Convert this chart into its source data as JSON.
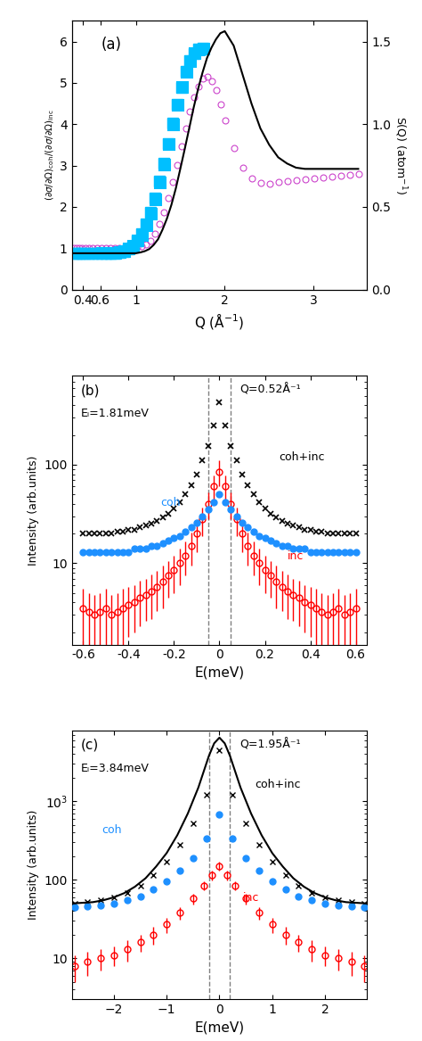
{
  "panel_a": {
    "title": "(a)",
    "xlabel": "Q (Å⁻¹)",
    "ylabel_left": "(∂σ/∂Ω)_coh/(∂σ/∂Ω)_inc",
    "ylabel_right": "S(Q) (atom⁻¹)",
    "xlim": [
      0.28,
      3.6
    ],
    "ylim_left": [
      0,
      6.5
    ],
    "ylim_right": [
      0,
      1.625
    ],
    "black_line_Q": [
      0.29,
      0.32,
      0.35,
      0.38,
      0.42,
      0.46,
      0.5,
      0.55,
      0.6,
      0.65,
      0.7,
      0.75,
      0.8,
      0.85,
      0.9,
      0.95,
      1.0,
      1.05,
      1.1,
      1.15,
      1.2,
      1.25,
      1.3,
      1.35,
      1.4,
      1.45,
      1.5,
      1.55,
      1.6,
      1.65,
      1.7,
      1.75,
      1.8,
      1.85,
      1.9,
      1.95,
      2.0,
      2.1,
      2.2,
      2.3,
      2.4,
      2.5,
      2.6,
      2.7,
      2.8,
      2.9,
      3.0,
      3.1,
      3.2,
      3.3,
      3.4,
      3.5
    ],
    "black_line_val": [
      0.88,
      0.88,
      0.88,
      0.88,
      0.88,
      0.88,
      0.88,
      0.88,
      0.88,
      0.88,
      0.88,
      0.88,
      0.88,
      0.88,
      0.88,
      0.88,
      0.88,
      0.9,
      0.93,
      0.98,
      1.08,
      1.22,
      1.45,
      1.72,
      2.05,
      2.45,
      2.92,
      3.4,
      3.9,
      4.4,
      4.85,
      5.25,
      5.6,
      5.85,
      6.05,
      6.2,
      6.25,
      5.9,
      5.2,
      4.5,
      3.9,
      3.5,
      3.2,
      3.05,
      2.95,
      2.92,
      2.92,
      2.92,
      2.92,
      2.92,
      2.92,
      2.92
    ],
    "cyan_open_sq_Q": [
      0.62,
      0.67,
      0.72,
      0.77,
      0.82,
      0.87,
      0.92,
      0.97,
      1.02,
      1.07,
      1.12,
      1.17,
      1.22,
      1.27,
      1.32,
      1.37,
      1.42,
      1.47,
      1.52,
      1.57,
      1.62,
      1.67,
      1.72,
      1.77
    ],
    "cyan_open_sq_val": [
      0.88,
      0.88,
      0.88,
      0.88,
      0.9,
      0.93,
      0.98,
      1.05,
      1.17,
      1.32,
      1.55,
      1.83,
      2.18,
      2.58,
      3.02,
      3.5,
      3.98,
      4.45,
      4.88,
      5.25,
      5.52,
      5.7,
      5.8,
      5.82
    ],
    "cyan_filled_sq_Q": [
      0.3,
      0.33,
      0.36,
      0.39,
      0.43,
      0.47,
      0.51,
      0.56,
      0.61,
      0.66,
      0.71,
      0.76,
      0.81,
      0.86,
      0.91,
      0.96,
      1.01,
      1.06,
      1.11,
      1.16,
      1.21,
      1.26,
      1.31,
      1.36,
      1.41,
      1.46,
      1.51,
      1.56,
      1.61,
      1.66,
      1.71,
      1.76
    ],
    "cyan_filled_sq_val": [
      0.88,
      0.88,
      0.88,
      0.88,
      0.88,
      0.88,
      0.88,
      0.88,
      0.88,
      0.88,
      0.88,
      0.88,
      0.9,
      0.93,
      0.98,
      1.05,
      1.17,
      1.35,
      1.58,
      1.87,
      2.22,
      2.62,
      3.06,
      3.54,
      4.02,
      4.48,
      4.9,
      5.27,
      5.54,
      5.72,
      5.82,
      5.84
    ],
    "purple_circle_Q": [
      0.3,
      0.33,
      0.36,
      0.39,
      0.43,
      0.47,
      0.51,
      0.56,
      0.61,
      0.66,
      0.71,
      0.76,
      0.81,
      0.86,
      0.91,
      0.96,
      1.01,
      1.06,
      1.11,
      1.16,
      1.21,
      1.26,
      1.31,
      1.36,
      1.41,
      1.46,
      1.51,
      1.56,
      1.61,
      1.66,
      1.71,
      1.76,
      1.81,
      1.86,
      1.91,
      1.96,
      2.01,
      2.11,
      2.21,
      2.31,
      2.41,
      2.51,
      2.61,
      2.71,
      2.81,
      2.91,
      3.01,
      3.11,
      3.21,
      3.31,
      3.41,
      3.51
    ],
    "purple_circle_val": [
      1.0,
      1.0,
      1.0,
      1.0,
      1.0,
      1.0,
      1.0,
      1.0,
      1.0,
      1.0,
      1.0,
      1.0,
      1.0,
      1.0,
      1.0,
      1.0,
      1.02,
      1.05,
      1.1,
      1.18,
      1.35,
      1.58,
      1.87,
      2.22,
      2.6,
      3.02,
      3.46,
      3.9,
      4.3,
      4.65,
      4.92,
      5.1,
      5.15,
      5.05,
      4.82,
      4.48,
      4.1,
      3.42,
      2.95,
      2.68,
      2.58,
      2.57,
      2.6,
      2.63,
      2.65,
      2.67,
      2.7,
      2.72,
      2.74,
      2.76,
      2.78,
      2.8
    ]
  },
  "panel_b": {
    "title": "(b)",
    "xlabel": "E(meV)",
    "ylabel": "Intensity (arb.units)",
    "label_Ei": "Eᵢ=1.81meV",
    "label_Q": "Q=0.52Å⁻¹",
    "label_coh": "coh",
    "label_inc": "inc",
    "label_cohinc": "coh+inc",
    "xlim": [
      -0.65,
      0.65
    ],
    "ylim": [
      1.5,
      800
    ],
    "dashed_lines": [
      -0.05,
      0.05
    ],
    "E_cross": [
      -0.6,
      -0.575,
      -0.55,
      -0.525,
      -0.5,
      -0.475,
      -0.45,
      -0.425,
      -0.4,
      -0.375,
      -0.35,
      -0.325,
      -0.3,
      -0.275,
      -0.25,
      -0.225,
      -0.2,
      -0.175,
      -0.15,
      -0.125,
      -0.1,
      -0.075,
      -0.05,
      -0.025,
      0.0,
      0.025,
      0.05,
      0.075,
      0.1,
      0.125,
      0.15,
      0.175,
      0.2,
      0.225,
      0.25,
      0.275,
      0.3,
      0.325,
      0.35,
      0.375,
      0.4,
      0.425,
      0.45,
      0.475,
      0.5,
      0.525,
      0.55,
      0.575,
      0.6
    ],
    "I_cross": [
      20,
      20,
      20,
      20,
      20,
      20,
      21,
      21,
      22,
      22,
      23,
      24,
      25,
      27,
      29,
      32,
      36,
      42,
      50,
      62,
      80,
      110,
      155,
      250,
      430,
      250,
      155,
      110,
      80,
      62,
      50,
      42,
      36,
      32,
      29,
      27,
      25,
      24,
      23,
      22,
      22,
      21,
      21,
      20,
      20,
      20,
      20,
      20,
      20
    ],
    "E_coh": [
      -0.6,
      -0.575,
      -0.55,
      -0.525,
      -0.5,
      -0.475,
      -0.45,
      -0.425,
      -0.4,
      -0.375,
      -0.35,
      -0.325,
      -0.3,
      -0.275,
      -0.25,
      -0.225,
      -0.2,
      -0.175,
      -0.15,
      -0.125,
      -0.1,
      -0.075,
      -0.05,
      -0.025,
      0.0,
      0.025,
      0.05,
      0.075,
      0.1,
      0.125,
      0.15,
      0.175,
      0.2,
      0.225,
      0.25,
      0.275,
      0.3,
      0.325,
      0.35,
      0.375,
      0.4,
      0.425,
      0.45,
      0.475,
      0.5,
      0.525,
      0.55,
      0.575,
      0.6
    ],
    "I_coh": [
      13,
      13,
      13,
      13,
      13,
      13,
      13,
      13,
      13,
      14,
      14,
      14,
      15,
      15,
      16,
      17,
      18,
      19,
      21,
      23,
      26,
      30,
      35,
      42,
      50,
      42,
      35,
      30,
      26,
      23,
      21,
      19,
      18,
      17,
      16,
      15,
      15,
      14,
      14,
      14,
      13,
      13,
      13,
      13,
      13,
      13,
      13,
      13,
      13
    ],
    "E_inc": [
      -0.6,
      -0.575,
      -0.55,
      -0.525,
      -0.5,
      -0.475,
      -0.45,
      -0.425,
      -0.4,
      -0.375,
      -0.35,
      -0.325,
      -0.3,
      -0.275,
      -0.25,
      -0.225,
      -0.2,
      -0.175,
      -0.15,
      -0.125,
      -0.1,
      -0.075,
      -0.05,
      -0.025,
      0.0,
      0.025,
      0.05,
      0.075,
      0.1,
      0.125,
      0.15,
      0.175,
      0.2,
      0.225,
      0.25,
      0.275,
      0.3,
      0.325,
      0.35,
      0.375,
      0.4,
      0.425,
      0.45,
      0.475,
      0.5,
      0.525,
      0.55,
      0.575,
      0.6
    ],
    "I_inc": [
      3.5,
      3.2,
      3.0,
      3.2,
      3.5,
      3.0,
      3.2,
      3.5,
      3.8,
      4.0,
      4.5,
      4.8,
      5.2,
      5.8,
      6.5,
      7.5,
      8.5,
      10,
      12,
      15,
      20,
      28,
      40,
      60,
      85,
      60,
      40,
      28,
      20,
      15,
      12,
      10,
      8.5,
      7.5,
      6.5,
      5.8,
      5.2,
      4.8,
      4.5,
      4.0,
      3.8,
      3.5,
      3.2,
      3.0,
      3.2,
      3.5,
      3.0,
      3.2,
      3.5
    ],
    "I_inc_err": [
      2.0,
      1.8,
      1.8,
      1.8,
      2.0,
      1.8,
      1.8,
      2.0,
      2.0,
      2.0,
      2.2,
      2.2,
      2.5,
      2.5,
      3.0,
      3.0,
      3.5,
      4.0,
      4.5,
      5.5,
      7.0,
      9.0,
      12,
      18,
      25,
      18,
      12,
      9.0,
      7.0,
      5.5,
      4.5,
      4.0,
      3.5,
      3.0,
      3.0,
      2.5,
      2.5,
      2.2,
      2.2,
      2.0,
      2.0,
      2.0,
      1.8,
      1.8,
      1.8,
      2.0,
      1.8,
      1.8,
      2.0
    ]
  },
  "panel_c": {
    "title": "(c)",
    "xlabel": "E(meV)",
    "ylabel": "Intensity (arb.units)",
    "label_Ei": "Eᵢ=3.84meV",
    "label_Q": "Q=1.95Å⁻¹",
    "label_coh": "coh",
    "label_inc": "inc",
    "label_cohinc": "coh+inc",
    "xlim": [
      -2.8,
      2.8
    ],
    "ylim": [
      3.0,
      8000
    ],
    "dashed_lines": [
      -0.2,
      0.2
    ],
    "E_cross": [
      -2.75,
      -2.5,
      -2.25,
      -2.0,
      -1.75,
      -1.5,
      -1.25,
      -1.0,
      -0.75,
      -0.5,
      -0.25,
      0.0,
      0.25,
      0.5,
      0.75,
      1.0,
      1.25,
      1.5,
      1.75,
      2.0,
      2.25,
      2.5,
      2.75
    ],
    "I_cross": [
      50,
      52,
      55,
      60,
      68,
      85,
      115,
      170,
      280,
      520,
      1200,
      4500,
      1200,
      520,
      280,
      170,
      115,
      85,
      68,
      60,
      55,
      52,
      50
    ],
    "black_line_E": [
      -2.8,
      -2.6,
      -2.4,
      -2.2,
      -2.0,
      -1.8,
      -1.6,
      -1.4,
      -1.2,
      -1.0,
      -0.8,
      -0.6,
      -0.4,
      -0.2,
      -0.1,
      0.0,
      0.1,
      0.2,
      0.4,
      0.6,
      0.8,
      1.0,
      1.2,
      1.4,
      1.6,
      1.8,
      2.0,
      2.2,
      2.4,
      2.6,
      2.8
    ],
    "black_line_I": [
      50,
      51,
      52,
      55,
      60,
      68,
      82,
      105,
      148,
      220,
      370,
      700,
      1500,
      3800,
      5500,
      6500,
      5500,
      3800,
      1500,
      700,
      370,
      220,
      148,
      105,
      82,
      68,
      60,
      55,
      52,
      51,
      50
    ],
    "E_coh": [
      -2.75,
      -2.5,
      -2.25,
      -2.0,
      -1.75,
      -1.5,
      -1.25,
      -1.0,
      -0.75,
      -0.5,
      -0.25,
      0.0,
      0.25,
      0.5,
      0.75,
      1.0,
      1.25,
      1.5,
      1.75,
      2.0,
      2.25,
      2.5,
      2.75
    ],
    "I_coh": [
      45,
      46,
      47,
      50,
      55,
      62,
      75,
      95,
      130,
      190,
      340,
      680,
      340,
      190,
      130,
      95,
      75,
      62,
      55,
      50,
      47,
      46,
      45
    ],
    "E_inc": [
      -2.75,
      -2.5,
      -2.25,
      -2.0,
      -1.75,
      -1.5,
      -1.25,
      -1.0,
      -0.75,
      -0.5,
      -0.3,
      -0.15,
      0.0,
      0.15,
      0.3,
      0.5,
      0.75,
      1.0,
      1.25,
      1.5,
      1.75,
      2.0,
      2.25,
      2.5,
      2.75
    ],
    "I_inc": [
      8,
      9,
      10,
      11,
      13,
      16,
      20,
      27,
      38,
      58,
      85,
      115,
      150,
      115,
      85,
      58,
      38,
      27,
      20,
      16,
      13,
      11,
      10,
      9,
      8
    ],
    "I_inc_err": [
      3,
      3,
      3,
      3,
      4,
      4,
      5,
      6,
      7,
      9,
      12,
      16,
      20,
      16,
      12,
      9,
      7,
      6,
      5,
      4,
      4,
      3,
      3,
      3,
      3
    ]
  }
}
